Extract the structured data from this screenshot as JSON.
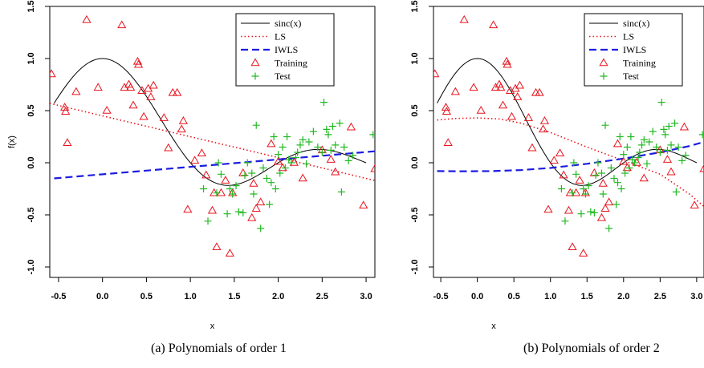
{
  "chart_data": [
    {
      "type": "scatter",
      "caption": "(a) Polynomials of order 1",
      "xlabel": "x",
      "ylabel": "f(x)",
      "xlim": [
        -0.6,
        3.1
      ],
      "ylim": [
        -1.1,
        1.5
      ],
      "x_ticks": [
        "-0.5",
        "0.0",
        "0.5",
        "1.0",
        "1.5",
        "2.0",
        "2.5",
        "3.0"
      ],
      "y_ticks": [
        "-1.0",
        "-0.5",
        "0.0",
        "0.5",
        "1.0",
        "1.5"
      ],
      "legend": {
        "position": "top-right",
        "entries": [
          "sinc(x)",
          "LS",
          "IWLS",
          "Training",
          "Test"
        ]
      },
      "series": [
        {
          "name": "sinc(x)",
          "style": "solid",
          "color": "#000000",
          "formula": "sinc"
        },
        {
          "name": "LS",
          "style": "dotted",
          "color": "#e8141e",
          "x": [
            -0.6,
            3.1
          ],
          "y": [
            0.57,
            -0.17
          ]
        },
        {
          "name": "IWLS",
          "style": "dashed",
          "color": "#1c1ce0",
          "x": [
            -0.55,
            3.1
          ],
          "y": [
            -0.15,
            0.11
          ]
        }
      ],
      "training": [
        [
          -0.58,
          0.85
        ],
        [
          -0.43,
          0.53
        ],
        [
          -0.42,
          0.49
        ],
        [
          -0.4,
          0.19
        ],
        [
          -0.3,
          0.68
        ],
        [
          -0.18,
          1.37
        ],
        [
          -0.05,
          0.72
        ],
        [
          0.05,
          0.5
        ],
        [
          0.22,
          1.32
        ],
        [
          0.25,
          0.72
        ],
        [
          0.3,
          0.75
        ],
        [
          0.32,
          0.72
        ],
        [
          0.35,
          0.55
        ],
        [
          0.4,
          0.97
        ],
        [
          0.41,
          0.94
        ],
        [
          0.45,
          0.69
        ],
        [
          0.47,
          0.44
        ],
        [
          0.52,
          0.71
        ],
        [
          0.55,
          0.63
        ],
        [
          0.58,
          0.74
        ],
        [
          0.7,
          0.43
        ],
        [
          0.75,
          0.14
        ],
        [
          0.8,
          0.67
        ],
        [
          0.85,
          0.67
        ],
        [
          0.9,
          0.32
        ],
        [
          0.92,
          0.4
        ],
        [
          0.97,
          -0.45
        ],
        [
          1.05,
          0.02
        ],
        [
          1.13,
          0.09
        ],
        [
          1.18,
          -0.12
        ],
        [
          1.25,
          -0.46
        ],
        [
          1.27,
          -0.29
        ],
        [
          1.3,
          -0.81
        ],
        [
          1.35,
          -0.29
        ],
        [
          1.4,
          -0.17
        ],
        [
          1.45,
          -0.87
        ],
        [
          1.48,
          -0.29
        ],
        [
          1.6,
          -0.1
        ],
        [
          1.7,
          -0.53
        ],
        [
          1.72,
          -0.2
        ],
        [
          1.75,
          -0.44
        ],
        [
          1.8,
          -0.38
        ],
        [
          1.92,
          0.18
        ],
        [
          2.0,
          0.01
        ],
        [
          2.05,
          -0.05
        ],
        [
          2.18,
          0.0
        ],
        [
          2.28,
          -0.15
        ],
        [
          2.5,
          0.12
        ],
        [
          2.6,
          0.03
        ],
        [
          2.65,
          -0.09
        ],
        [
          2.83,
          0.34
        ],
        [
          2.97,
          -0.41
        ],
        [
          3.1,
          -0.06
        ]
      ],
      "test": [
        [
          1.15,
          -0.25
        ],
        [
          1.2,
          -0.56
        ],
        [
          1.3,
          -0.29
        ],
        [
          1.32,
          0.0
        ],
        [
          1.35,
          -0.11
        ],
        [
          1.42,
          -0.49
        ],
        [
          1.45,
          -0.25
        ],
        [
          1.48,
          -0.3
        ],
        [
          1.52,
          -0.22
        ],
        [
          1.55,
          -0.47
        ],
        [
          1.6,
          -0.48
        ],
        [
          1.62,
          -0.12
        ],
        [
          1.65,
          0.0
        ],
        [
          1.7,
          -0.1
        ],
        [
          1.72,
          -0.3
        ],
        [
          1.75,
          0.36
        ],
        [
          1.8,
          -0.63
        ],
        [
          1.83,
          -0.05
        ],
        [
          1.87,
          -0.15
        ],
        [
          1.9,
          -0.4
        ],
        [
          1.92,
          -0.19
        ],
        [
          1.95,
          0.25
        ],
        [
          1.97,
          -0.25
        ],
        [
          2.0,
          0.08
        ],
        [
          2.02,
          -0.1
        ],
        [
          2.05,
          0.15
        ],
        [
          2.08,
          -0.05
        ],
        [
          2.1,
          0.25
        ],
        [
          2.12,
          0.03
        ],
        [
          2.15,
          0.0
        ],
        [
          2.2,
          0.05
        ],
        [
          2.22,
          0.1
        ],
        [
          2.25,
          0.17
        ],
        [
          2.28,
          0.22
        ],
        [
          2.32,
          -0.01
        ],
        [
          2.35,
          0.2
        ],
        [
          2.4,
          0.3
        ],
        [
          2.45,
          0.15
        ],
        [
          2.5,
          0.1
        ],
        [
          2.52,
          0.58
        ],
        [
          2.55,
          0.32
        ],
        [
          2.57,
          0.27
        ],
        [
          2.6,
          0.12
        ],
        [
          2.62,
          0.35
        ],
        [
          2.65,
          0.17
        ],
        [
          2.7,
          0.38
        ],
        [
          2.72,
          -0.28
        ],
        [
          2.75,
          0.15
        ],
        [
          2.8,
          0.02
        ],
        [
          2.85,
          0.07
        ],
        [
          3.08,
          0.27
        ]
      ]
    },
    {
      "type": "scatter",
      "caption": "(b) Polynomials of order 2",
      "xlabel": "x",
      "ylabel": "",
      "xlim": [
        -0.6,
        3.1
      ],
      "ylim": [
        -1.1,
        1.5
      ],
      "x_ticks": [
        "-0.5",
        "0.0",
        "0.5",
        "1.0",
        "1.5",
        "2.0",
        "2.5",
        "3.0"
      ],
      "y_ticks": [
        "-1.0",
        "-0.5",
        "0.0",
        "0.5",
        "1.0",
        "1.5"
      ],
      "legend": {
        "position": "top-right",
        "entries": [
          "sinc(x)",
          "LS",
          "IWLS",
          "Training",
          "Test"
        ]
      },
      "series": [
        {
          "name": "sinc(x)",
          "style": "solid",
          "color": "#000000",
          "formula": "sinc"
        },
        {
          "name": "LS",
          "style": "dotted",
          "color": "#e8141e",
          "x": [
            -0.55,
            -0.3,
            0.0,
            0.3,
            0.6,
            1.0,
            1.5,
            2.0,
            2.5,
            2.9,
            3.1
          ],
          "y": [
            0.41,
            0.425,
            0.43,
            0.42,
            0.38,
            0.29,
            0.15,
            0.02,
            -0.11,
            -0.3,
            -0.42
          ]
        },
        {
          "name": "IWLS",
          "style": "dashed",
          "color": "#1c1ce0",
          "x": [
            -0.55,
            -0.2,
            0.2,
            0.6,
            1.0,
            1.5,
            2.0,
            2.5,
            2.9,
            3.1
          ],
          "y": [
            -0.08,
            -0.082,
            -0.08,
            -0.07,
            -0.05,
            -0.01,
            0.04,
            0.1,
            0.16,
            0.2
          ]
        }
      ],
      "training": [
        [
          -0.58,
          0.85
        ],
        [
          -0.43,
          0.53
        ],
        [
          -0.42,
          0.49
        ],
        [
          -0.4,
          0.19
        ],
        [
          -0.3,
          0.68
        ],
        [
          -0.18,
          1.37
        ],
        [
          -0.05,
          0.72
        ],
        [
          0.05,
          0.5
        ],
        [
          0.22,
          1.32
        ],
        [
          0.25,
          0.72
        ],
        [
          0.3,
          0.75
        ],
        [
          0.32,
          0.72
        ],
        [
          0.35,
          0.55
        ],
        [
          0.4,
          0.97
        ],
        [
          0.41,
          0.94
        ],
        [
          0.45,
          0.69
        ],
        [
          0.47,
          0.44
        ],
        [
          0.52,
          0.71
        ],
        [
          0.55,
          0.63
        ],
        [
          0.58,
          0.74
        ],
        [
          0.7,
          0.43
        ],
        [
          0.75,
          0.14
        ],
        [
          0.8,
          0.67
        ],
        [
          0.85,
          0.67
        ],
        [
          0.9,
          0.32
        ],
        [
          0.92,
          0.4
        ],
        [
          0.97,
          -0.45
        ],
        [
          1.05,
          0.02
        ],
        [
          1.13,
          0.09
        ],
        [
          1.18,
          -0.12
        ],
        [
          1.25,
          -0.46
        ],
        [
          1.27,
          -0.29
        ],
        [
          1.3,
          -0.81
        ],
        [
          1.35,
          -0.29
        ],
        [
          1.4,
          -0.17
        ],
        [
          1.45,
          -0.87
        ],
        [
          1.48,
          -0.29
        ],
        [
          1.6,
          -0.1
        ],
        [
          1.7,
          -0.53
        ],
        [
          1.72,
          -0.2
        ],
        [
          1.75,
          -0.44
        ],
        [
          1.8,
          -0.38
        ],
        [
          1.92,
          0.18
        ],
        [
          2.0,
          0.01
        ],
        [
          2.05,
          -0.05
        ],
        [
          2.18,
          0.0
        ],
        [
          2.28,
          -0.15
        ],
        [
          2.5,
          0.12
        ],
        [
          2.6,
          0.03
        ],
        [
          2.65,
          -0.09
        ],
        [
          2.83,
          0.34
        ],
        [
          2.97,
          -0.41
        ],
        [
          3.1,
          -0.06
        ]
      ],
      "test": [
        [
          1.15,
          -0.25
        ],
        [
          1.2,
          -0.56
        ],
        [
          1.3,
          -0.29
        ],
        [
          1.32,
          0.0
        ],
        [
          1.35,
          -0.11
        ],
        [
          1.42,
          -0.49
        ],
        [
          1.45,
          -0.25
        ],
        [
          1.48,
          -0.3
        ],
        [
          1.52,
          -0.22
        ],
        [
          1.55,
          -0.47
        ],
        [
          1.6,
          -0.48
        ],
        [
          1.62,
          -0.12
        ],
        [
          1.65,
          0.0
        ],
        [
          1.7,
          -0.1
        ],
        [
          1.72,
          -0.3
        ],
        [
          1.75,
          0.36
        ],
        [
          1.8,
          -0.63
        ],
        [
          1.83,
          -0.05
        ],
        [
          1.87,
          -0.15
        ],
        [
          1.9,
          -0.4
        ],
        [
          1.92,
          -0.19
        ],
        [
          1.95,
          0.25
        ],
        [
          1.97,
          -0.25
        ],
        [
          2.0,
          0.08
        ],
        [
          2.02,
          -0.1
        ],
        [
          2.05,
          0.15
        ],
        [
          2.08,
          -0.05
        ],
        [
          2.1,
          0.25
        ],
        [
          2.12,
          0.03
        ],
        [
          2.15,
          0.0
        ],
        [
          2.2,
          0.05
        ],
        [
          2.22,
          0.1
        ],
        [
          2.25,
          0.17
        ],
        [
          2.28,
          0.22
        ],
        [
          2.32,
          -0.01
        ],
        [
          2.35,
          0.2
        ],
        [
          2.4,
          0.3
        ],
        [
          2.45,
          0.15
        ],
        [
          2.5,
          0.1
        ],
        [
          2.52,
          0.58
        ],
        [
          2.55,
          0.32
        ],
        [
          2.57,
          0.27
        ],
        [
          2.6,
          0.12
        ],
        [
          2.62,
          0.35
        ],
        [
          2.65,
          0.17
        ],
        [
          2.7,
          0.38
        ],
        [
          2.72,
          -0.28
        ],
        [
          2.75,
          0.15
        ],
        [
          2.8,
          0.02
        ],
        [
          2.85,
          0.07
        ],
        [
          3.08,
          0.27
        ]
      ]
    }
  ]
}
